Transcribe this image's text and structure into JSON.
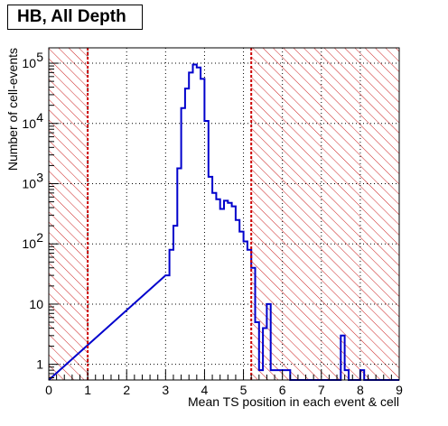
{
  "chart_data": {
    "type": "histogram",
    "title": "HB, All Depth",
    "xlabel": "Mean TS position in each event & cell",
    "ylabel": "Number of cell-events",
    "xlim": [
      0,
      9
    ],
    "ylim": [
      0.55,
      180000
    ],
    "yscale": "log",
    "grid": true,
    "x_ticks": [
      "0",
      "1",
      "2",
      "3",
      "4",
      "5",
      "6",
      "7",
      "8",
      "9"
    ],
    "y_ticks": [
      {
        "value": 1,
        "label": "1"
      },
      {
        "value": 10,
        "label": "10"
      },
      {
        "value": 100,
        "label": "10",
        "exp": "2"
      },
      {
        "value": 1000,
        "label": "10",
        "exp": "3"
      },
      {
        "value": 10000,
        "label": "10",
        "exp": "4"
      },
      {
        "value": 100000,
        "label": "10",
        "exp": "5"
      }
    ],
    "cut_lines": [
      1,
      5.2
    ],
    "excluded_regions": [
      [
        0,
        1
      ],
      [
        5.2,
        9
      ]
    ],
    "bin_width": 0.1,
    "bin_start": 3.0,
    "counts": [
      30,
      80,
      200,
      1800,
      18000,
      38000,
      70000,
      95000,
      85000,
      55000,
      11000,
      1300,
      700,
      550,
      380,
      520,
      480,
      420,
      250,
      160,
      110,
      80,
      40,
      5,
      0.8,
      4,
      10,
      0.8,
      0.8,
      0.8,
      0.8,
      0.8,
      0,
      0,
      0,
      0,
      0,
      0,
      0,
      0,
      0,
      0,
      0,
      0,
      0,
      3,
      0.8,
      0,
      0,
      0,
      0.8,
      0
    ],
    "colors": {
      "histogram": "#0000cc",
      "cut_line": "#cc0000",
      "hatch": "#cc2222",
      "grid": "#000000"
    }
  }
}
